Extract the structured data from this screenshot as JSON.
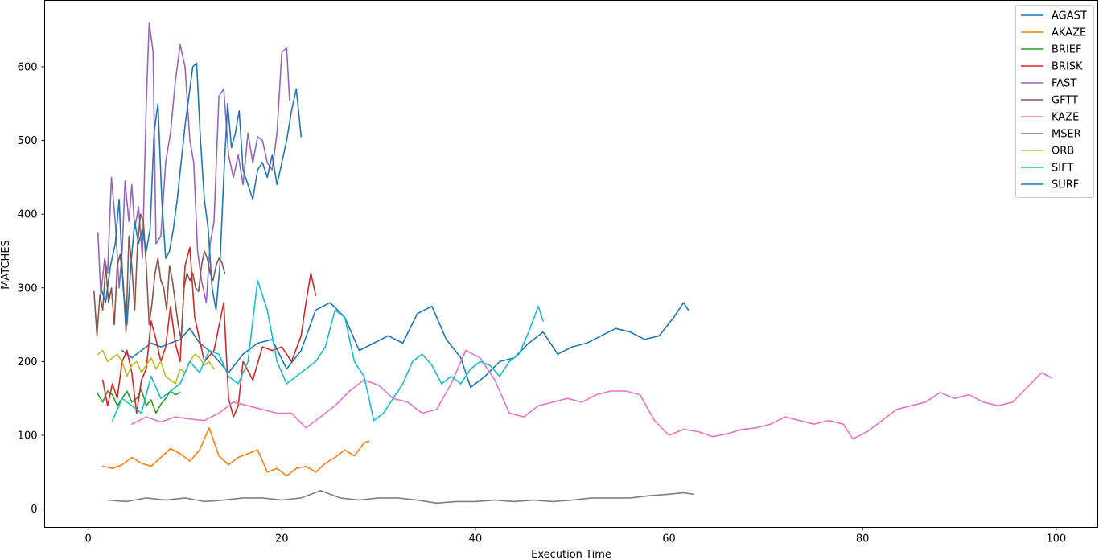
{
  "chart_data": {
    "type": "line",
    "title": "",
    "xlabel": "Execution Time",
    "ylabel": "MATCHES",
    "xlim": [
      -4.5,
      104.3
    ],
    "ylim": [
      -25,
      690
    ],
    "xticks": [
      0,
      20,
      40,
      60,
      80,
      100
    ],
    "yticks": [
      0,
      100,
      200,
      300,
      400,
      500,
      600
    ],
    "grid": false,
    "legend_position": "top-right",
    "series": [
      {
        "name": "AGAST",
        "color": "#1f77b4",
        "x": [
          3.5,
          4.5,
          5.5,
          6.5,
          7.5,
          8.5,
          9.5,
          10.5,
          11.5,
          12.5,
          13.5,
          14.5,
          16,
          17.5,
          19,
          20.5,
          22,
          23.5,
          25,
          26.5,
          28,
          29.5,
          31,
          32.5,
          34,
          35.5,
          37,
          38.5,
          39.5,
          41,
          42.5,
          44,
          45.5,
          47,
          48.5,
          50,
          51.5,
          53,
          54.5,
          56,
          57.5,
          59,
          60.5,
          61.5,
          62
        ],
        "y": [
          215,
          205,
          215,
          225,
          220,
          225,
          230,
          245,
          225,
          215,
          200,
          185,
          210,
          225,
          230,
          190,
          215,
          270,
          280,
          260,
          215,
          225,
          235,
          225,
          265,
          275,
          230,
          205,
          165,
          180,
          200,
          205,
          225,
          240,
          210,
          220,
          225,
          235,
          245,
          240,
          230,
          235,
          260,
          280,
          270
        ]
      },
      {
        "name": "AKAZE",
        "color": "#ff7f0e",
        "x": [
          1.5,
          2.5,
          3.5,
          4.5,
          5.5,
          6.5,
          7.5,
          8.5,
          9.5,
          10.5,
          11.5,
          12.5,
          13.5,
          14.5,
          15.5,
          16.5,
          17.5,
          18.5,
          19.5,
          20.5,
          21.5,
          22.5,
          23.5,
          24.5,
          25.5,
          26.5,
          27.5,
          28.5,
          29
        ],
        "y": [
          58,
          55,
          60,
          70,
          62,
          58,
          70,
          82,
          75,
          65,
          80,
          110,
          72,
          60,
          70,
          75,
          80,
          50,
          55,
          45,
          55,
          58,
          50,
          62,
          70,
          80,
          72,
          90,
          92
        ]
      },
      {
        "name": "BRIEF",
        "color": "#2ca02c",
        "x": [
          0.9,
          1.5,
          2.0,
          2.5,
          3.0,
          3.5,
          4.0,
          4.5,
          5.0,
          5.5,
          6.0,
          6.5,
          7.0,
          7.5,
          8.0,
          8.5,
          9.0,
          9.5
        ],
        "y": [
          158,
          145,
          160,
          155,
          140,
          150,
          160,
          145,
          150,
          162,
          140,
          148,
          130,
          142,
          150,
          160,
          155,
          158
        ]
      },
      {
        "name": "BRISK",
        "color": "#d62728",
        "x": [
          1.5,
          2.0,
          2.5,
          3.0,
          3.5,
          4.0,
          4.5,
          5.0,
          5.5,
          6.0,
          6.5,
          7.0,
          7.5,
          8.0,
          8.5,
          9.0,
          9.5,
          10.0,
          10.5,
          11,
          12,
          13,
          14,
          14.5,
          15,
          15.5,
          16,
          17,
          18,
          19,
          20,
          21,
          22,
          22.5,
          23,
          23.5
        ],
        "y": [
          175,
          140,
          170,
          150,
          200,
          215,
          185,
          130,
          175,
          190,
          255,
          230,
          200,
          220,
          275,
          225,
          200,
          330,
          355,
          260,
          200,
          215,
          280,
          150,
          125,
          140,
          200,
          175,
          220,
          215,
          220,
          200,
          235,
          280,
          320,
          290
        ]
      },
      {
        "name": "FAST",
        "color": "#9467bd",
        "x": [
          1.0,
          1.3,
          1.7,
          2.0,
          2.4,
          2.8,
          3.2,
          3.5,
          3.8,
          4.2,
          4.5,
          4.8,
          5.2,
          5.6,
          6.0,
          6.3,
          6.7,
          7.0,
          7.5,
          8.0,
          8.5,
          9.0,
          9.5,
          10.0,
          10.5,
          10.9,
          11.3,
          11.7,
          12.2,
          12.6,
          13.0,
          13.5,
          14.0,
          14.5,
          15.0,
          15.5,
          16.0,
          16.5,
          17.0,
          17.5,
          18.0,
          18.5,
          19.0,
          19.5,
          20.0,
          20.5,
          20.8
        ],
        "y": [
          375,
          290,
          340,
          320,
          450,
          390,
          300,
          350,
          445,
          390,
          440,
          380,
          410,
          340,
          550,
          660,
          620,
          360,
          370,
          470,
          510,
          580,
          630,
          600,
          500,
          470,
          350,
          310,
          280,
          360,
          390,
          560,
          570,
          480,
          450,
          480,
          440,
          510,
          470,
          505,
          500,
          470,
          460,
          510,
          620,
          625,
          555
        ]
      },
      {
        "name": "GFTT",
        "color": "#8c564b",
        "x": [
          0.6,
          0.9,
          1.2,
          1.5,
          1.8,
          2.1,
          2.4,
          2.7,
          3.0,
          3.3,
          3.6,
          3.9,
          4.2,
          4.5,
          4.8,
          5.1,
          5.4,
          5.7,
          6.0,
          6.3,
          6.6,
          6.9,
          7.2,
          7.5,
          7.8,
          8.1,
          8.4,
          8.7,
          9.0,
          9.3,
          9.6,
          9.9,
          10.2,
          10.5,
          10.8,
          11.1,
          11.4,
          11.7,
          12.0,
          12.3,
          12.6,
          12.9,
          13.2,
          13.5,
          13.8,
          14.1
        ],
        "y": [
          295,
          235,
          290,
          270,
          330,
          280,
          300,
          250,
          330,
          345,
          310,
          240,
          370,
          330,
          270,
          360,
          400,
          390,
          330,
          250,
          280,
          320,
          340,
          310,
          300,
          270,
          330,
          310,
          280,
          250,
          230,
          300,
          320,
          310,
          320,
          300,
          295,
          330,
          350,
          340,
          320,
          310,
          330,
          340,
          335,
          320
        ]
      },
      {
        "name": "KAZE",
        "color": "#e377c2",
        "x": [
          4.5,
          6,
          7.5,
          9,
          10.5,
          12,
          13.5,
          15,
          16.5,
          18,
          19.5,
          21,
          22.5,
          24,
          25.5,
          27,
          28.5,
          30,
          31.5,
          33,
          34.5,
          36,
          37.5,
          39,
          40.5,
          42,
          43.5,
          45,
          46.5,
          48,
          49.5,
          51,
          52.5,
          54,
          55.5,
          57,
          58.5,
          60,
          61.5,
          63,
          64.5,
          66,
          67.5,
          69,
          70.5,
          72,
          73.5,
          75,
          76.5,
          78,
          79,
          80.5,
          82,
          83.5,
          85,
          86.5,
          88,
          89.5,
          91,
          92.5,
          94,
          95.5,
          97,
          98.5,
          99.5
        ],
        "y": [
          115,
          125,
          118,
          125,
          122,
          120,
          130,
          145,
          140,
          135,
          130,
          130,
          110,
          125,
          140,
          160,
          175,
          168,
          150,
          145,
          130,
          135,
          170,
          215,
          205,
          175,
          130,
          125,
          140,
          145,
          150,
          145,
          155,
          160,
          160,
          155,
          120,
          100,
          108,
          105,
          98,
          102,
          108,
          110,
          115,
          125,
          120,
          115,
          120,
          115,
          95,
          105,
          120,
          135,
          140,
          145,
          158,
          150,
          155,
          145,
          140,
          145,
          165,
          185,
          178
        ]
      },
      {
        "name": "MSER",
        "color": "#7f7f7f",
        "x": [
          2,
          4,
          6,
          8,
          10,
          12,
          14,
          16,
          18,
          20,
          22,
          24,
          26,
          28,
          30,
          32,
          34,
          36,
          38,
          40,
          42,
          44,
          46,
          48,
          50,
          52,
          54,
          56,
          58,
          60,
          61.5,
          62.5
        ],
        "y": [
          12,
          10,
          15,
          12,
          15,
          10,
          12,
          15,
          15,
          12,
          15,
          25,
          15,
          12,
          15,
          15,
          12,
          8,
          10,
          10,
          12,
          10,
          12,
          10,
          12,
          15,
          15,
          15,
          18,
          20,
          22,
          20
        ]
      },
      {
        "name": "ORB",
        "color": "#bcbd22",
        "x": [
          1.0,
          1.5,
          2.0,
          2.5,
          3.0,
          3.5,
          4.0,
          4.5,
          5.0,
          5.5,
          6.0,
          6.5,
          7.0,
          7.5,
          8.0,
          8.5,
          9.0,
          9.5,
          10.0,
          10.5,
          11.0,
          11.5,
          12.0,
          12.5,
          13.0
        ],
        "y": [
          210,
          215,
          200,
          205,
          210,
          200,
          180,
          195,
          200,
          185,
          195,
          205,
          190,
          200,
          180,
          175,
          170,
          190,
          185,
          200,
          210,
          205,
          195,
          200,
          190
        ]
      },
      {
        "name": "SIFT",
        "color": "#17becf",
        "x": [
          2.5,
          3.5,
          4.5,
          5.5,
          6.5,
          7.5,
          8.5,
          9.5,
          10.5,
          11.5,
          12.5,
          13.5,
          14.5,
          15.5,
          16.5,
          17.5,
          18.5,
          19.5,
          20.5,
          21.5,
          22.5,
          23.5,
          24.5,
          25.5,
          26.5,
          27.5,
          28.5,
          29.5,
          30.5,
          31.5,
          32.5,
          33.5,
          34.5,
          35.5,
          36.5,
          37.5,
          38.5,
          39.5,
          40.5,
          41.5,
          42.5,
          43.5,
          44.5,
          45.5,
          46.5,
          47.0
        ],
        "y": [
          120,
          150,
          140,
          130,
          180,
          150,
          160,
          170,
          200,
          185,
          215,
          210,
          180,
          170,
          200,
          310,
          270,
          200,
          170,
          180,
          190,
          200,
          220,
          270,
          260,
          200,
          180,
          120,
          130,
          150,
          170,
          200,
          210,
          195,
          170,
          180,
          170,
          190,
          200,
          195,
          180,
          200,
          210,
          240,
          275,
          255
        ]
      },
      {
        "name": "SURF",
        "color": "#1f77b4",
        "x": [
          1.3,
          1.8,
          2.3,
          2.8,
          3.2,
          3.6,
          4.0,
          4.4,
          4.8,
          5.2,
          5.6,
          6.0,
          6.4,
          6.8,
          7.2,
          7.6,
          8.0,
          8.4,
          8.8,
          9.2,
          9.6,
          10.0,
          10.4,
          10.8,
          11.2,
          11.6,
          12.0,
          12.4,
          12.8,
          13.2,
          13.6,
          14.0,
          14.4,
          14.8,
          15.2,
          15.6,
          16.0,
          16.5,
          17.0,
          17.5,
          18.0,
          18.5,
          19.0,
          19.5,
          20.0,
          20.5,
          21.0,
          21.5,
          22.0
        ],
        "y": [
          300,
          280,
          330,
          360,
          420,
          300,
          250,
          330,
          390,
          360,
          380,
          350,
          380,
          510,
          550,
          420,
          340,
          350,
          380,
          420,
          470,
          520,
          560,
          600,
          605,
          500,
          420,
          380,
          300,
          270,
          330,
          450,
          550,
          490,
          510,
          540,
          460,
          440,
          420,
          460,
          470,
          450,
          480,
          440,
          470,
          500,
          540,
          570,
          505
        ]
      }
    ]
  }
}
